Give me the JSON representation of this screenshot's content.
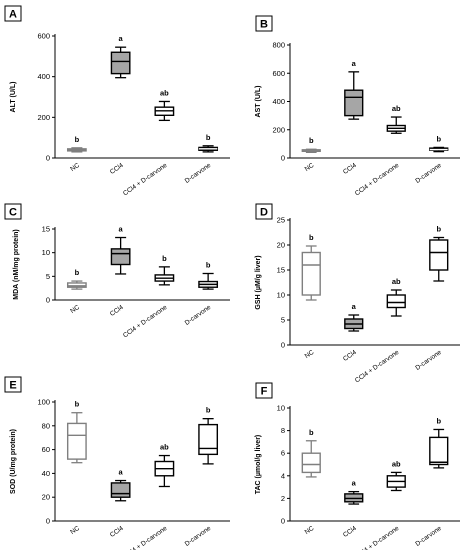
{
  "chart_data": [
    {
      "type": "boxplot",
      "panel": "A",
      "ylabel": "ALT (U/L)",
      "ylim": [
        0,
        600
      ],
      "yticks": [
        0,
        200,
        400,
        600
      ],
      "categories": [
        "NC",
        "CCl4",
        "CCl4 + D-carvone",
        "D-carvone"
      ],
      "boxes": [
        {
          "min": 30,
          "q1": 35,
          "median": 40,
          "q3": 45,
          "max": 50,
          "fill": "#a6a6a6",
          "stroke": "#7f7f7f"
        },
        {
          "min": 395,
          "q1": 415,
          "median": 475,
          "q3": 520,
          "max": 545,
          "fill": "#a6a6a6",
          "stroke": "#000000"
        },
        {
          "min": 185,
          "q1": 210,
          "median": 232,
          "q3": 250,
          "max": 278,
          "fill": "#ffffff",
          "stroke": "#000000"
        },
        {
          "min": 30,
          "q1": 38,
          "median": 45,
          "q3": 52,
          "max": 60,
          "fill": "#000000",
          "stroke": "#000000"
        }
      ],
      "sig_labels": [
        "b",
        "a",
        "ab",
        "b"
      ]
    },
    {
      "type": "boxplot",
      "panel": "B",
      "ylabel": "AST (U/L)",
      "ylim": [
        0,
        800
      ],
      "yticks": [
        0,
        200,
        400,
        600,
        800
      ],
      "categories": [
        "NC",
        "CCl4",
        "CCl4 + D-carvone",
        "D-carvone"
      ],
      "boxes": [
        {
          "min": 40,
          "q1": 50,
          "median": 55,
          "q3": 58,
          "max": 62,
          "fill": "#ffffff",
          "stroke": "#7f7f7f"
        },
        {
          "min": 275,
          "q1": 300,
          "median": 430,
          "q3": 480,
          "max": 610,
          "fill": "#a6a6a6",
          "stroke": "#000000"
        },
        {
          "min": 175,
          "q1": 190,
          "median": 210,
          "q3": 230,
          "max": 290,
          "fill": "#ffffff",
          "stroke": "#000000"
        },
        {
          "min": 45,
          "q1": 55,
          "median": 60,
          "q3": 70,
          "max": 75,
          "fill": "#000000",
          "stroke": "#000000"
        }
      ],
      "sig_labels": [
        "b",
        "a",
        "ab",
        "b"
      ]
    },
    {
      "type": "boxplot",
      "panel": "C",
      "ylabel": "MDA (nM/mg protein)",
      "ylim": [
        0,
        15
      ],
      "yticks": [
        0,
        5,
        10,
        15
      ],
      "categories": [
        "NC",
        "CCl4",
        "CCl4 + D-carvone",
        "D-carvone"
      ],
      "boxes": [
        {
          "min": 2.3,
          "q1": 2.7,
          "median": 3.0,
          "q3": 3.6,
          "max": 4.0,
          "fill": "#ffffff",
          "stroke": "#7f7f7f"
        },
        {
          "min": 5.5,
          "q1": 7.5,
          "median": 9.8,
          "q3": 10.8,
          "max": 13.2,
          "fill": "#a6a6a6",
          "stroke": "#000000"
        },
        {
          "min": 3.2,
          "q1": 4.0,
          "median": 4.6,
          "q3": 5.3,
          "max": 7.0,
          "fill": "#ffffff",
          "stroke": "#000000"
        },
        {
          "min": 2.3,
          "q1": 2.7,
          "median": 3.3,
          "q3": 3.9,
          "max": 5.6,
          "fill": "#ffffff",
          "stroke": "#000000"
        }
      ],
      "sig_labels": [
        "b",
        "a",
        "b",
        "b"
      ]
    },
    {
      "type": "boxplot",
      "panel": "D",
      "ylabel": "GSH (µM/g liver)",
      "ylim": [
        0,
        25
      ],
      "yticks": [
        0,
        5,
        10,
        15,
        20,
        25
      ],
      "categories": [
        "NC",
        "CCl4",
        "CCl4 + D-carvone",
        "D-carvone"
      ],
      "boxes": [
        {
          "min": 9.0,
          "q1": 10.0,
          "median": 16.0,
          "q3": 18.5,
          "max": 19.8,
          "fill": "#ffffff",
          "stroke": "#7f7f7f"
        },
        {
          "min": 2.8,
          "q1": 3.3,
          "median": 4.2,
          "q3": 5.2,
          "max": 6.0,
          "fill": "#a6a6a6",
          "stroke": "#000000"
        },
        {
          "min": 5.8,
          "q1": 7.5,
          "median": 8.5,
          "q3": 10.0,
          "max": 11.0,
          "fill": "#ffffff",
          "stroke": "#000000"
        },
        {
          "min": 12.8,
          "q1": 15.0,
          "median": 18.5,
          "q3": 21.0,
          "max": 21.5,
          "fill": "#ffffff",
          "stroke": "#000000"
        }
      ],
      "sig_labels": [
        "b",
        "a",
        "ab",
        "b"
      ]
    },
    {
      "type": "boxplot",
      "panel": "E",
      "ylabel": "SOD (U/mg protein)",
      "ylim": [
        0,
        100
      ],
      "yticks": [
        0,
        20,
        40,
        60,
        80,
        100
      ],
      "categories": [
        "NC",
        "CCl4",
        "CCl4 + D-carvone",
        "D-carvone"
      ],
      "boxes": [
        {
          "min": 49,
          "q1": 52,
          "median": 72,
          "q3": 82,
          "max": 91,
          "fill": "#ffffff",
          "stroke": "#7f7f7f"
        },
        {
          "min": 17,
          "q1": 20,
          "median": 23,
          "q3": 32,
          "max": 34,
          "fill": "#a6a6a6",
          "stroke": "#000000"
        },
        {
          "min": 29,
          "q1": 38,
          "median": 44,
          "q3": 50,
          "max": 55,
          "fill": "#ffffff",
          "stroke": "#000000"
        },
        {
          "min": 48,
          "q1": 56,
          "median": 61,
          "q3": 81,
          "max": 86,
          "fill": "#ffffff",
          "stroke": "#000000"
        }
      ],
      "sig_labels": [
        "b",
        "a",
        "ab",
        "b"
      ]
    },
    {
      "type": "boxplot",
      "panel": "F",
      "ylabel": "TAC (µmol/g liver)",
      "ylim": [
        0,
        10
      ],
      "yticks": [
        0,
        2,
        4,
        6,
        8,
        10
      ],
      "categories": [
        "NC",
        "CCl4",
        "CCl4 + D-carvone",
        "D-carvone"
      ],
      "boxes": [
        {
          "min": 3.9,
          "q1": 4.3,
          "median": 5.0,
          "q3": 6.0,
          "max": 7.1,
          "fill": "#ffffff",
          "stroke": "#7f7f7f"
        },
        {
          "min": 1.5,
          "q1": 1.7,
          "median": 2.0,
          "q3": 2.4,
          "max": 2.6,
          "fill": "#a6a6a6",
          "stroke": "#000000"
        },
        {
          "min": 2.7,
          "q1": 3.0,
          "median": 3.5,
          "q3": 4.0,
          "max": 4.3,
          "fill": "#ffffff",
          "stroke": "#000000"
        },
        {
          "min": 4.7,
          "q1": 5.0,
          "median": 5.2,
          "q3": 7.4,
          "max": 8.1,
          "fill": "#ffffff",
          "stroke": "#000000"
        }
      ],
      "sig_labels": [
        "b",
        "a",
        "ab",
        "b"
      ]
    }
  ]
}
